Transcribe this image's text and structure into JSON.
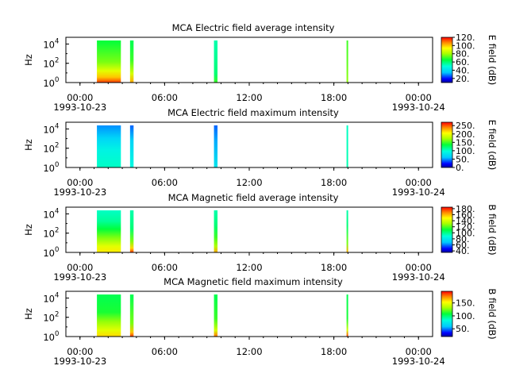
{
  "chart_data": [
    {
      "type": "heatmap",
      "title": "MCA  Electric field average intensity",
      "ylabel": "Hz",
      "yscale": "log",
      "ylim": [
        1,
        50000
      ],
      "yticks": [
        {
          "v": 1,
          "label": "10",
          "exp": "0"
        },
        {
          "v": 100,
          "label": "10",
          "exp": "2"
        },
        {
          "v": 10000,
          "label": "10",
          "exp": "4"
        }
      ],
      "xlim": [
        -1,
        25
      ],
      "xticks": [
        {
          "h": 0,
          "label": "00:00",
          "date": "1993-10-23"
        },
        {
          "h": 6,
          "label": "06:00",
          "date": ""
        },
        {
          "h": 12,
          "label": "12:00",
          "date": ""
        },
        {
          "h": 18,
          "label": "18:00",
          "date": ""
        },
        {
          "h": 24,
          "label": "00:00",
          "date": "1993-10-24"
        }
      ],
      "colorbar": {
        "label": "E field (dB)",
        "range": [
          10,
          120
        ],
        "ticks": [
          "20.",
          "40.",
          "60.",
          "80.",
          "100.",
          "120."
        ],
        "tick_values": [
          20,
          40,
          60,
          80,
          100,
          120
        ]
      },
      "segments": [
        {
          "x0": 1.2,
          "x1": 2.9,
          "levels": [
            [
              1,
              0.95
            ],
            [
              4,
              0.82
            ],
            [
              20,
              0.72
            ],
            [
              200,
              0.6
            ],
            [
              3000,
              0.55
            ],
            [
              50000,
              0.5
            ]
          ]
        },
        {
          "x0": 3.55,
          "x1": 3.8,
          "levels": [
            [
              1,
              0.85
            ],
            [
              10,
              0.7
            ],
            [
              300,
              0.55
            ],
            [
              50000,
              0.48
            ]
          ]
        },
        {
          "x0": 9.5,
          "x1": 9.75,
          "levels": [
            [
              1,
              0.55
            ],
            [
              10,
              0.45
            ],
            [
              1000,
              0.42
            ],
            [
              50000,
              0.4
            ]
          ]
        },
        {
          "x0": 18.9,
          "x1": 19.0,
          "levels": [
            [
              1,
              0.62
            ],
            [
              100,
              0.58
            ],
            [
              50000,
              0.55
            ]
          ]
        }
      ]
    },
    {
      "type": "heatmap",
      "title": "MCA  Electric field maximum intensity",
      "ylabel": "Hz",
      "yscale": "log",
      "ylim": [
        1,
        50000
      ],
      "yticks": [
        {
          "v": 1,
          "label": "10",
          "exp": "0"
        },
        {
          "v": 100,
          "label": "10",
          "exp": "2"
        },
        {
          "v": 10000,
          "label": "10",
          "exp": "4"
        }
      ],
      "xlim": [
        -1,
        25
      ],
      "xticks": [
        {
          "h": 0,
          "label": "00:00",
          "date": "1993-10-23"
        },
        {
          "h": 6,
          "label": "06:00",
          "date": ""
        },
        {
          "h": 12,
          "label": "12:00",
          "date": ""
        },
        {
          "h": 18,
          "label": "18:00",
          "date": ""
        },
        {
          "h": 24,
          "label": "00:00",
          "date": "1993-10-24"
        }
      ],
      "colorbar": {
        "label": "E field (dB)",
        "range": [
          0,
          270
        ],
        "ticks": [
          "0.",
          "50.",
          "100.",
          "150.",
          "200.",
          "250."
        ],
        "tick_values": [
          0,
          50,
          100,
          150,
          200,
          250
        ]
      },
      "segments": [
        {
          "x0": 1.2,
          "x1": 2.9,
          "levels": [
            [
              1,
              0.38
            ],
            [
              100,
              0.33
            ],
            [
              2000,
              0.25
            ],
            [
              50000,
              0.18
            ]
          ]
        },
        {
          "x0": 3.55,
          "x1": 3.8,
          "levels": [
            [
              1,
              0.35
            ],
            [
              1000,
              0.25
            ],
            [
              50000,
              0.15
            ]
          ]
        },
        {
          "x0": 9.5,
          "x1": 9.75,
          "levels": [
            [
              1,
              0.3
            ],
            [
              1000,
              0.2
            ],
            [
              50000,
              0.15
            ]
          ]
        },
        {
          "x0": 18.9,
          "x1": 19.0,
          "levels": [
            [
              1,
              0.4
            ],
            [
              50000,
              0.38
            ]
          ]
        }
      ]
    },
    {
      "type": "heatmap",
      "title": "MCA  Magnetic field average intensity",
      "ylabel": "Hz",
      "yscale": "log",
      "ylim": [
        1,
        50000
      ],
      "yticks": [
        {
          "v": 1,
          "label": "10",
          "exp": "0"
        },
        {
          "v": 100,
          "label": "10",
          "exp": "2"
        },
        {
          "v": 10000,
          "label": "10",
          "exp": "4"
        }
      ],
      "xlim": [
        -1,
        25
      ],
      "xticks": [
        {
          "h": 0,
          "label": "00:00",
          "date": "1993-10-23"
        },
        {
          "h": 6,
          "label": "06:00",
          "date": ""
        },
        {
          "h": 12,
          "label": "12:00",
          "date": ""
        },
        {
          "h": 18,
          "label": "18:00",
          "date": ""
        },
        {
          "h": 24,
          "label": "00:00",
          "date": "1993-10-24"
        }
      ],
      "colorbar": {
        "label": "B field (dB)",
        "range": [
          35,
          185
        ],
        "ticks": [
          "40.",
          "60.",
          "80.",
          "100.",
          "120.",
          "140.",
          "160.",
          "180."
        ],
        "tick_values": [
          40,
          60,
          80,
          100,
          120,
          140,
          160,
          180
        ]
      },
      "segments": [
        {
          "x0": 1.2,
          "x1": 2.9,
          "levels": [
            [
              1,
              0.78
            ],
            [
              5,
              0.72
            ],
            [
              50,
              0.6
            ],
            [
              400,
              0.5
            ],
            [
              3000,
              0.42
            ],
            [
              50000,
              0.38
            ]
          ]
        },
        {
          "x0": 3.55,
          "x1": 3.8,
          "levels": [
            [
              1,
              0.95
            ],
            [
              3,
              0.8
            ],
            [
              20,
              0.6
            ],
            [
              500,
              0.45
            ],
            [
              50000,
              0.4
            ]
          ]
        },
        {
          "x0": 9.5,
          "x1": 9.75,
          "levels": [
            [
              1,
              0.85
            ],
            [
              5,
              0.65
            ],
            [
              50,
              0.55
            ],
            [
              1000,
              0.45
            ],
            [
              50000,
              0.4
            ]
          ]
        },
        {
          "x0": 18.9,
          "x1": 19.0,
          "levels": [
            [
              1,
              0.85
            ],
            [
              10,
              0.6
            ],
            [
              1000,
              0.45
            ],
            [
              50000,
              0.4
            ]
          ]
        }
      ]
    },
    {
      "type": "heatmap",
      "title": "MCA  Magnetic field maximum intensity",
      "ylabel": "Hz",
      "yscale": "log",
      "ylim": [
        1,
        50000
      ],
      "yticks": [
        {
          "v": 1,
          "label": "10",
          "exp": "0"
        },
        {
          "v": 100,
          "label": "10",
          "exp": "2"
        },
        {
          "v": 10000,
          "label": "10",
          "exp": "4"
        }
      ],
      "xlim": [
        -1,
        25
      ],
      "xticks": [
        {
          "h": 0,
          "label": "00:00",
          "date": "1993-10-23"
        },
        {
          "h": 6,
          "label": "06:00",
          "date": ""
        },
        {
          "h": 12,
          "label": "12:00",
          "date": ""
        },
        {
          "h": 18,
          "label": "18:00",
          "date": ""
        },
        {
          "h": 24,
          "label": "00:00",
          "date": "1993-10-24"
        }
      ],
      "colorbar": {
        "label": "B field (dB)",
        "range": [
          20,
          195
        ],
        "ticks": [
          "50.",
          "100.",
          "150."
        ],
        "tick_values": [
          50,
          100,
          150
        ]
      },
      "segments": [
        {
          "x0": 1.2,
          "x1": 2.9,
          "levels": [
            [
              1,
              0.8
            ],
            [
              5,
              0.72
            ],
            [
              50,
              0.62
            ],
            [
              500,
              0.52
            ],
            [
              50000,
              0.48
            ]
          ]
        },
        {
          "x0": 3.55,
          "x1": 3.8,
          "levels": [
            [
              1,
              0.95
            ],
            [
              3,
              0.82
            ],
            [
              30,
              0.6
            ],
            [
              50000,
              0.48
            ]
          ]
        },
        {
          "x0": 9.5,
          "x1": 9.75,
          "levels": [
            [
              1,
              0.9
            ],
            [
              5,
              0.7
            ],
            [
              100,
              0.55
            ],
            [
              50000,
              0.48
            ]
          ]
        },
        {
          "x0": 18.9,
          "x1": 19.0,
          "levels": [
            [
              1,
              0.95
            ],
            [
              5,
              0.7
            ],
            [
              100,
              0.52
            ],
            [
              50000,
              0.48
            ]
          ]
        }
      ]
    }
  ]
}
